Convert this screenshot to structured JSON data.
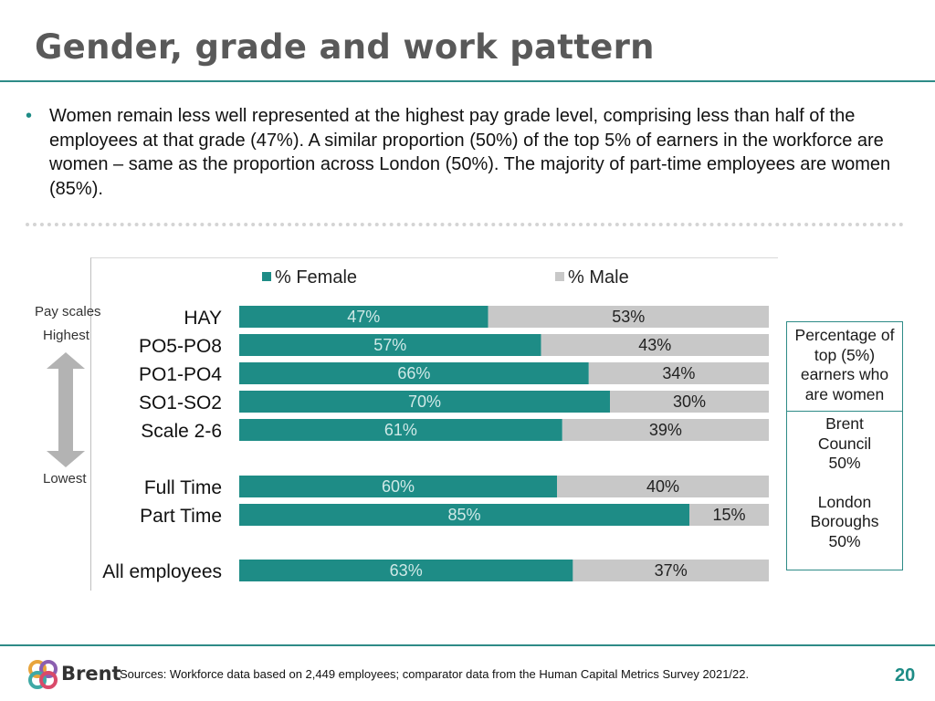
{
  "title": "Gender, grade and work pattern",
  "bullet": "Women remain less well represented at the highest pay grade level, comprising less than half of the employees at that grade (47%). A similar proportion (50%) of the top 5% of earners in the workforce are women – same as the proportion across London (50%).  The majority of part-time employees are women (85%).",
  "side_table": {
    "header": [
      "Percentage of",
      "top (5%)",
      "earners who",
      "are women"
    ],
    "brent": [
      "Brent",
      "Council",
      "50%"
    ],
    "london": [
      "London",
      "Boroughs",
      "50%"
    ]
  },
  "footer": {
    "logo_text": "Brent",
    "source": "Sources: Workforce data based on 2,449 employees; comparator data from the Human Capital Metrics Survey 2021/22.",
    "page": "20"
  },
  "colors": {
    "female": "#1e8c86",
    "male": "#c8c8c8",
    "accent": "#2e8b87"
  },
  "chart_data": {
    "type": "bar",
    "orientation": "horizontal",
    "stacked": true,
    "percent": true,
    "categories": [
      "HAY",
      "PO5-PO8",
      "PO1-PO4",
      "SO1-SO2",
      "Scale 2-6",
      "Full Time",
      "Part Time",
      "All employees"
    ],
    "series": [
      {
        "name": "% Female",
        "values": [
          47,
          57,
          66,
          70,
          61,
          60,
          85,
          63
        ],
        "labels": [
          "47%",
          "57%",
          "66%",
          "70%",
          "61%",
          "60%",
          "85%",
          "63%"
        ]
      },
      {
        "name": "% Male",
        "values": [
          53,
          43,
          34,
          30,
          39,
          40,
          15,
          37
        ],
        "labels": [
          "53%",
          "43%",
          "34%",
          "30%",
          "39%",
          "40%",
          "15%",
          "37%"
        ]
      }
    ],
    "xlim": [
      0,
      100
    ],
    "legend_position": "top",
    "axis_annotation": {
      "title": "Pay scales",
      "top": "Highest",
      "bottom": "Lowest"
    }
  }
}
